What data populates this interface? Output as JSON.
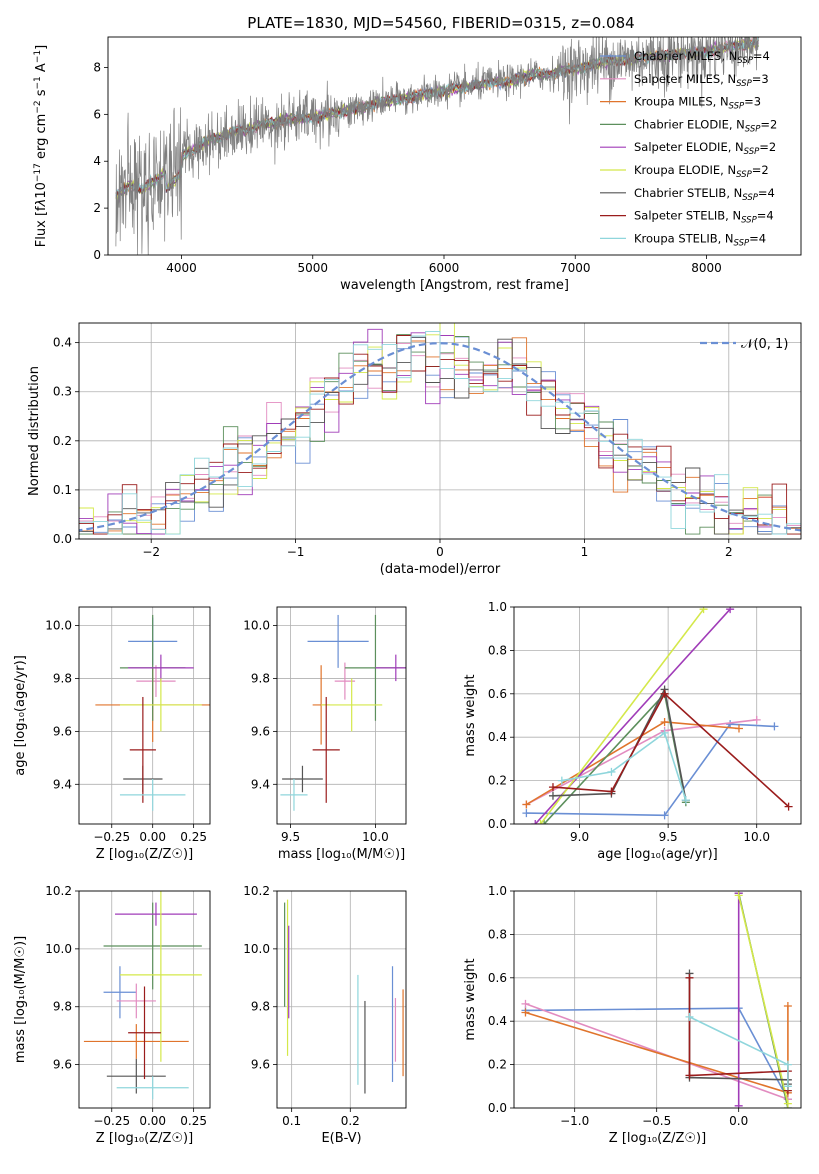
{
  "figure_title": "PLATE=1830, MJD=54560, FIBERID=0315, z=0.084",
  "colors": {
    "c1": "#6a8fd4",
    "c2": "#e0742c",
    "c3": "#5c8f5c",
    "c4": "#a03cb8",
    "c5": "#d4e84a",
    "c6": "#555555",
    "c7": "#9a1c1c",
    "c8": "#8fd6dc",
    "c9": "#e28cc0",
    "c10": "#7f7f7f",
    "normal": "#6a8fd4"
  },
  "chart_data": [
    {
      "id": "spectrum",
      "type": "line",
      "title": "PLATE=1830, MJD=54560, FIBERID=0315, z=0.084",
      "xlabel": "wavelength [Angstrom, rest frame]",
      "ylabel": "Flux [f_λ 10^-17 erg cm^-2 s^-1 A^-1]",
      "ylabel_html": "Flux [f<tspan font-style='italic'>λ</tspan>10<tspan baseline-shift='super' font-size='9'>−17</tspan> erg cm<tspan baseline-shift='super' font-size='9'>−2</tspan> s<tspan baseline-shift='super' font-size='9'>−1</tspan> A<tspan baseline-shift='super' font-size='9'>−1</tspan>]",
      "xlim": [
        3440,
        8720
      ],
      "ylim": [
        0,
        9.3
      ],
      "xticks": [
        4000,
        5000,
        6000,
        7000,
        8000
      ],
      "yticks": [
        0,
        2,
        4,
        6,
        8
      ],
      "grid": false,
      "legend_position": "right",
      "observed": {
        "x": [
          3500,
          3600,
          3700,
          3800,
          3900,
          4000,
          4100,
          4200,
          4300,
          4400,
          4500,
          4600,
          4700,
          4800,
          4900,
          5000,
          5100,
          5200,
          5300,
          5400,
          5500,
          5600,
          5700,
          5800,
          5900,
          6000,
          6100,
          6200,
          6300,
          6400,
          6500,
          6600,
          6700,
          6800,
          6900,
          7000,
          7100,
          7200,
          7300,
          7400,
          7500,
          7600,
          7700,
          7800,
          7900,
          8000,
          8100,
          8200,
          8300,
          8400
        ],
        "y": [
          2.5,
          3.0,
          2.8,
          3.2,
          3.6,
          4.2,
          4.5,
          4.9,
          5.0,
          5.3,
          5.3,
          5.6,
          5.6,
          5.8,
          5.8,
          5.9,
          6.0,
          6.1,
          6.2,
          6.3,
          6.5,
          6.6,
          6.7,
          6.8,
          6.9,
          7.0,
          7.1,
          7.2,
          7.3,
          7.4,
          7.4,
          7.6,
          7.7,
          7.7,
          7.9,
          7.9,
          8.1,
          8.2,
          8.3,
          8.3,
          8.4,
          8.5,
          8.5,
          8.6,
          8.6,
          8.7,
          8.8,
          8.9,
          9.0,
          9.1
        ]
      },
      "series": [
        {
          "name": "Chabrier MILES, N_SSP=4",
          "label": "Chabrier MILES, N",
          "sub": "SSP",
          "suffix": "=4",
          "color": "c1"
        },
        {
          "name": "Salpeter MILES, N_SSP=3",
          "label": "Salpeter MILES, N",
          "sub": "SSP",
          "suffix": "=3",
          "color": "c9"
        },
        {
          "name": "Kroupa MILES, N_SSP=3",
          "label": "Kroupa MILES, N",
          "sub": "SSP",
          "suffix": "=3",
          "color": "c2"
        },
        {
          "name": "Chabrier ELODIE, N_SSP=2",
          "label": "Chabrier ELODIE, N",
          "sub": "SSP",
          "suffix": "=2",
          "color": "c3"
        },
        {
          "name": "Salpeter ELODIE, N_SSP=2",
          "label": "Salpeter ELODIE, N",
          "sub": "SSP",
          "suffix": "=2",
          "color": "c4"
        },
        {
          "name": "Kroupa ELODIE, N_SSP=2",
          "label": "Kroupa ELODIE, N",
          "sub": "SSP",
          "suffix": "=2",
          "color": "c5"
        },
        {
          "name": "Chabrier STELIB, N_SSP=4",
          "label": "Chabrier STELIB, N",
          "sub": "SSP",
          "suffix": "=4",
          "color": "c6"
        },
        {
          "name": "Salpeter STELIB, N_SSP=4",
          "label": "Salpeter STELIB, N",
          "sub": "SSP",
          "suffix": "=4",
          "color": "c7"
        },
        {
          "name": "Kroupa STELIB, N_SSP=4",
          "label": "Kroupa STELIB, N",
          "sub": "SSP",
          "suffix": "=4",
          "color": "c8"
        }
      ]
    },
    {
      "id": "residuals",
      "type": "line",
      "xlabel": "(data-model)/error",
      "ylabel": "Normed distribution",
      "xlim": [
        -2.5,
        2.5
      ],
      "ylim": [
        0,
        0.44
      ],
      "xticks": [
        -2,
        -1,
        0,
        1,
        2
      ],
      "yticks": [
        0.0,
        0.1,
        0.2,
        0.3,
        0.4
      ],
      "grid": true,
      "legend_position": "top-right",
      "legend": "𝒩(0, 1)",
      "normal": {
        "mean": 0,
        "sigma": 1
      }
    },
    {
      "id": "age_vs_Z",
      "type": "scatter",
      "xlabel": "Z [log₁₀(Z/Z☉)]",
      "ylabel": "age  [log₁₀(age/yr)]",
      "xlim": [
        -0.45,
        0.35
      ],
      "ylim": [
        9.25,
        10.07
      ],
      "xticks": [
        -0.25,
        0.0,
        0.25
      ],
      "yticks": [
        9.4,
        9.6,
        9.8,
        10.0
      ],
      "grid": true,
      "points": [
        {
          "x": 0.0,
          "y": 9.94,
          "xerr": 0.15,
          "yerr": 0.09,
          "color": "c1"
        },
        {
          "x": 0.02,
          "y": 9.79,
          "xerr": 0.12,
          "yerr": 0.06,
          "color": "c9"
        },
        {
          "x": 0.0,
          "y": 9.7,
          "xerr": 0.35,
          "yerr": 0.14,
          "color": "c2"
        },
        {
          "x": 0.0,
          "y": 9.84,
          "xerr": 0.2,
          "yerr": 0.2,
          "color": "c3"
        },
        {
          "x": 0.05,
          "y": 9.84,
          "xerr": 0.2,
          "yerr": 0.05,
          "color": "c4"
        },
        {
          "x": 0.05,
          "y": 9.7,
          "xerr": 0.25,
          "yerr": 0.1,
          "color": "c5"
        },
        {
          "x": -0.06,
          "y": 9.42,
          "xerr": 0.12,
          "yerr": 0.05,
          "color": "c6"
        },
        {
          "x": -0.06,
          "y": 9.53,
          "xerr": 0.08,
          "yerr": 0.2,
          "color": "c7"
        },
        {
          "x": 0.0,
          "y": 9.36,
          "xerr": 0.2,
          "yerr": 0.06,
          "color": "c8"
        }
      ]
    },
    {
      "id": "age_vs_mass",
      "type": "scatter",
      "xlabel": "mass [log₁₀(M/M☉)]",
      "ylabel": "",
      "xlim": [
        9.42,
        10.18
      ],
      "ylim": [
        9.25,
        10.07
      ],
      "xticks": [
        9.5,
        10.0
      ],
      "yticks": [
        9.4,
        9.6,
        9.8,
        10.0
      ],
      "grid": true,
      "points": [
        {
          "x": 9.78,
          "y": 9.94,
          "xerr": 0.18,
          "yerr": 0.1,
          "color": "c1"
        },
        {
          "x": 9.82,
          "y": 9.79,
          "xerr": 0.06,
          "yerr": 0.07,
          "color": "c9"
        },
        {
          "x": 9.68,
          "y": 9.7,
          "xerr": 0.05,
          "yerr": 0.15,
          "color": "c2"
        },
        {
          "x": 10.0,
          "y": 9.84,
          "xerr": 0.18,
          "yerr": 0.2,
          "color": "c3"
        },
        {
          "x": 10.12,
          "y": 9.84,
          "xerr": 0.12,
          "yerr": 0.05,
          "color": "c4"
        },
        {
          "x": 9.86,
          "y": 9.7,
          "xerr": 0.18,
          "yerr": 0.1,
          "color": "c5"
        },
        {
          "x": 9.57,
          "y": 9.42,
          "xerr": 0.12,
          "yerr": 0.05,
          "color": "c6"
        },
        {
          "x": 9.71,
          "y": 9.53,
          "xerr": 0.08,
          "yerr": 0.2,
          "color": "c7"
        },
        {
          "x": 9.52,
          "y": 9.36,
          "xerr": 0.08,
          "yerr": 0.06,
          "color": "c8"
        }
      ]
    },
    {
      "id": "weight_vs_age",
      "type": "line",
      "xlabel": "age  [log₁₀(age/yr)]",
      "ylabel": "mass weight",
      "xlim": [
        8.63,
        10.25
      ],
      "ylim": [
        0,
        1.0
      ],
      "xticks": [
        9.0,
        9.5,
        10.0
      ],
      "yticks": [
        0.0,
        0.2,
        0.4,
        0.6,
        0.8,
        1.0
      ],
      "grid": true,
      "series": [
        {
          "color": "c1",
          "points": [
            [
              8.7,
              0.05
            ],
            [
              9.48,
              0.04
            ],
            [
              9.85,
              0.46
            ],
            [
              10.1,
              0.45
            ]
          ]
        },
        {
          "color": "c9",
          "points": [
            [
              8.7,
              0.09
            ],
            [
              9.48,
              0.43
            ],
            [
              10.0,
              0.48
            ]
          ]
        },
        {
          "color": "c2",
          "points": [
            [
              8.7,
              0.09
            ],
            [
              9.48,
              0.47
            ],
            [
              9.9,
              0.44
            ]
          ]
        },
        {
          "color": "c3",
          "points": [
            [
              8.8,
              0.0
            ],
            [
              9.48,
              0.6
            ],
            [
              9.6,
              0.1
            ]
          ]
        },
        {
          "color": "c4",
          "points": [
            [
              8.75,
              0.0
            ],
            [
              9.85,
              0.99
            ]
          ]
        },
        {
          "color": "c5",
          "points": [
            [
              8.78,
              0.0
            ],
            [
              9.7,
              0.99
            ]
          ]
        },
        {
          "color": "c6",
          "points": [
            [
              8.85,
              0.13
            ],
            [
              9.18,
              0.14
            ],
            [
              9.48,
              0.62
            ],
            [
              9.6,
              0.11
            ]
          ]
        },
        {
          "color": "c7",
          "points": [
            [
              8.85,
              0.17
            ],
            [
              9.18,
              0.15
            ],
            [
              9.48,
              0.6
            ],
            [
              10.18,
              0.08
            ]
          ]
        },
        {
          "color": "c8",
          "points": [
            [
              8.9,
              0.2
            ],
            [
              9.18,
              0.24
            ],
            [
              9.48,
              0.42
            ],
            [
              9.6,
              0.11
            ]
          ]
        }
      ]
    },
    {
      "id": "mass_vs_Z",
      "type": "scatter",
      "xlabel": "Z [log₁₀(Z/Z☉)]",
      "ylabel": "mass [log₁₀(M/M☉)]",
      "xlim": [
        -0.45,
        0.35
      ],
      "ylim": [
        9.45,
        10.2
      ],
      "xticks": [
        -0.25,
        0.0,
        0.25
      ],
      "yticks": [
        9.6,
        9.8,
        10.0,
        10.2
      ],
      "grid": true,
      "points": [
        {
          "x": -0.2,
          "y": 9.85,
          "xerr": 0.1,
          "yerr": 0.09,
          "color": "c1"
        },
        {
          "x": -0.1,
          "y": 9.82,
          "xerr": 0.12,
          "yerr": 0.06,
          "color": "c9"
        },
        {
          "x": -0.1,
          "y": 9.68,
          "xerr": 0.32,
          "yerr": 0.06,
          "color": "c2"
        },
        {
          "x": 0.0,
          "y": 10.01,
          "xerr": 0.3,
          "yerr": 0.15,
          "color": "c3"
        },
        {
          "x": 0.02,
          "y": 10.12,
          "xerr": 0.25,
          "yerr": 0.04,
          "color": "c4"
        },
        {
          "x": 0.05,
          "y": 9.91,
          "xerr": 0.25,
          "yerr": 0.3,
          "color": "c5"
        },
        {
          "x": -0.1,
          "y": 9.56,
          "xerr": 0.18,
          "yerr": 0.06,
          "color": "c6"
        },
        {
          "x": -0.05,
          "y": 9.71,
          "xerr": 0.1,
          "yerr": 0.16,
          "color": "c7"
        },
        {
          "x": 0.0,
          "y": 9.52,
          "xerr": 0.22,
          "yerr": 0.04,
          "color": "c8"
        }
      ]
    },
    {
      "id": "mass_vs_EBV",
      "type": "scatter",
      "xlabel": "E(B-V)",
      "ylabel": "",
      "xlim": [
        0.075,
        0.295
      ],
      "ylim": [
        9.45,
        10.2
      ],
      "xticks": [
        0.1,
        0.2
      ],
      "yticks": [
        9.6,
        9.8,
        10.0,
        10.2
      ],
      "grid": true,
      "points": [
        {
          "x": 0.088,
          "y": 9.98,
          "yerr": 0.18,
          "color": "c3"
        },
        {
          "x": 0.093,
          "y": 9.9,
          "yerr": 0.27,
          "color": "c5"
        },
        {
          "x": 0.095,
          "y": 9.92,
          "yerr": 0.16,
          "color": "c4"
        },
        {
          "x": 0.213,
          "y": 9.72,
          "yerr": 0.19,
          "color": "c8"
        },
        {
          "x": 0.225,
          "y": 9.66,
          "yerr": 0.16,
          "color": "c6"
        },
        {
          "x": 0.272,
          "y": 9.74,
          "yerr": 0.2,
          "color": "c1"
        },
        {
          "x": 0.277,
          "y": 9.72,
          "yerr": 0.11,
          "color": "c9"
        },
        {
          "x": 0.29,
          "y": 9.71,
          "yerr": 0.15,
          "color": "c2"
        }
      ]
    },
    {
      "id": "weight_vs_Z",
      "type": "line",
      "xlabel": "Z [log₁₀(Z/Z☉)]",
      "ylabel": "mass weight",
      "xlim": [
        -1.37,
        0.38
      ],
      "ylim": [
        0,
        1.0
      ],
      "xticks": [
        -1.0,
        -0.5,
        0.0
      ],
      "yticks": [
        0.0,
        0.2,
        0.4,
        0.6,
        0.8,
        1.0
      ],
      "grid": true,
      "series": [
        {
          "color": "c1",
          "points": [
            [
              -1.3,
              0.45
            ],
            [
              0.0,
              0.46
            ],
            [
              0.3,
              0.04
            ]
          ]
        },
        {
          "color": "c9",
          "points": [
            [
              -1.3,
              0.48
            ],
            [
              0.3,
              0.04
            ]
          ]
        },
        {
          "color": "c2",
          "points": [
            [
              -1.3,
              0.44
            ],
            [
              0.3,
              0.07
            ],
            [
              0.3,
              0.47
            ]
          ]
        },
        {
          "color": "c3",
          "points": [
            [
              0.0,
              0.99
            ],
            [
              0.3,
              0.0
            ]
          ]
        },
        {
          "color": "c4",
          "points": [
            [
              0.0,
              0.01
            ],
            [
              0.0,
              0.99
            ]
          ]
        },
        {
          "color": "c5",
          "points": [
            [
              0.0,
              0.98
            ],
            [
              0.3,
              0.02
            ]
          ]
        },
        {
          "color": "c6",
          "points": [
            [
              -0.3,
              0.62
            ],
            [
              -0.3,
              0.14
            ],
            [
              0.3,
              0.13
            ],
            [
              0.3,
              0.11
            ]
          ]
        },
        {
          "color": "c7",
          "points": [
            [
              -0.3,
              0.6
            ],
            [
              -0.3,
              0.15
            ],
            [
              0.3,
              0.17
            ],
            [
              0.3,
              0.08
            ]
          ]
        },
        {
          "color": "c8",
          "points": [
            [
              -0.3,
              0.42
            ],
            [
              0.3,
              0.2
            ],
            [
              0.3,
              0.1
            ]
          ]
        }
      ]
    }
  ]
}
